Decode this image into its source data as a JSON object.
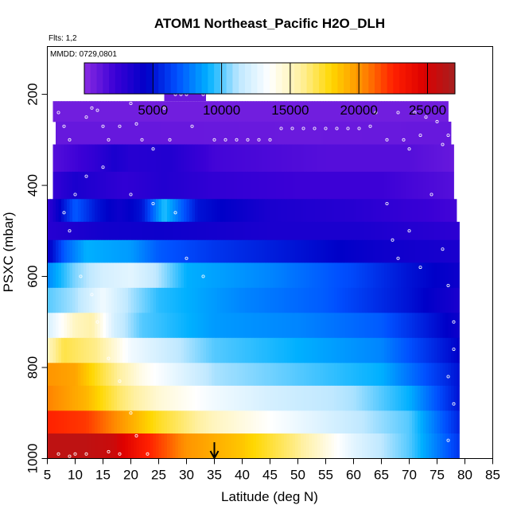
{
  "chart_data": {
    "type": "heatmap",
    "title": "ATOM1 Northeast_Pacific H2O_DLH",
    "flights_note": "Flts: 1,2",
    "date_note": "MMDD: 0729,0801",
    "xlabel": "Latitude (deg N)",
    "ylabel": "PSXC (mbar)",
    "xlim": [
      5,
      85
    ],
    "ylim": [
      1000,
      95
    ],
    "y_reversed": true,
    "x_ticks": [
      5,
      10,
      15,
      20,
      25,
      30,
      35,
      40,
      45,
      50,
      55,
      60,
      65,
      70,
      75,
      80,
      85
    ],
    "y_ticks": [
      200,
      400,
      600,
      800,
      1000
    ],
    "colorbar": {
      "range": [
        0,
        27000
      ],
      "tick_values": [
        5000,
        10000,
        15000,
        20000,
        25000
      ],
      "colors": [
        "#8a2be2",
        "#3a00d6",
        "#0000c8",
        "#0050ff",
        "#00b0ff",
        "#bfe8ff",
        "#ffffff",
        "#fff0a0",
        "#ffd700",
        "#ff8c00",
        "#ff2000",
        "#dd0000",
        "#a52020"
      ]
    },
    "grid": false,
    "marker_note": {
      "latitude": 35,
      "pressure": 1000,
      "symbol": "down-arrow"
    },
    "pressure_bands": [
      {
        "top": 215,
        "bottom": 260,
        "lat_range": [
          6,
          77
        ],
        "knots": [
          [
            6,
            700
          ],
          [
            30,
            700
          ],
          [
            50,
            700
          ],
          [
            77,
            700
          ]
        ]
      },
      {
        "top": 260,
        "bottom": 310,
        "lat_range": [
          6.5,
          77.5
        ],
        "knots": [
          [
            6.5,
            1000
          ],
          [
            25,
            1000
          ],
          [
            50,
            900
          ],
          [
            77.5,
            1000
          ]
        ]
      },
      {
        "top": 310,
        "bottom": 370,
        "lat_range": [
          6,
          78
        ],
        "knots": [
          [
            6,
            1500
          ],
          [
            13,
            2500
          ],
          [
            17,
            3500
          ],
          [
            20,
            3000
          ],
          [
            27,
            3200
          ],
          [
            35,
            2000
          ],
          [
            55,
            1500
          ],
          [
            70,
            1500
          ],
          [
            78,
            1000
          ]
        ]
      },
      {
        "top": 370,
        "bottom": 430,
        "lat_range": [
          6,
          78
        ],
        "knots": [
          [
            6,
            2500
          ],
          [
            10,
            3500
          ],
          [
            15,
            3000
          ],
          [
            19,
            2600
          ],
          [
            26,
            3200
          ],
          [
            35,
            2600
          ],
          [
            50,
            2200
          ],
          [
            65,
            2200
          ],
          [
            78,
            1500
          ]
        ]
      },
      {
        "top": 430,
        "bottom": 480,
        "lat_range": [
          5,
          78.5
        ],
        "knots": [
          [
            5,
            2500
          ],
          [
            10,
            7000
          ],
          [
            14,
            5000
          ],
          [
            18,
            4000
          ],
          [
            22,
            5000
          ],
          [
            26,
            9500
          ],
          [
            28,
            8000
          ],
          [
            32,
            5000
          ],
          [
            45,
            3500
          ],
          [
            60,
            3000
          ],
          [
            78.5,
            2000
          ]
        ]
      },
      {
        "top": 480,
        "bottom": 520,
        "lat_range": [
          5,
          79
        ],
        "knots": [
          [
            5,
            3000
          ],
          [
            15,
            3800
          ],
          [
            25,
            4000
          ],
          [
            45,
            3500
          ],
          [
            60,
            3500
          ],
          [
            79,
            2800
          ]
        ]
      },
      {
        "top": 520,
        "bottom": 570,
        "lat_range": [
          5,
          79
        ],
        "knots": [
          [
            5,
            4000
          ],
          [
            8,
            7000
          ],
          [
            12,
            9000
          ],
          [
            20,
            8500
          ],
          [
            25,
            7000
          ],
          [
            35,
            6000
          ],
          [
            50,
            5000
          ],
          [
            65,
            4000
          ],
          [
            79,
            3500
          ]
        ]
      },
      {
        "top": 570,
        "bottom": 625,
        "lat_range": [
          5,
          79
        ],
        "knots": [
          [
            5,
            8000
          ],
          [
            10,
            10500
          ],
          [
            15,
            12000
          ],
          [
            20,
            12500
          ],
          [
            24,
            11500
          ],
          [
            30,
            9000
          ],
          [
            45,
            8000
          ],
          [
            60,
            6500
          ],
          [
            70,
            5000
          ],
          [
            79,
            4000
          ]
        ]
      },
      {
        "top": 625,
        "bottom": 680,
        "lat_range": [
          5,
          79
        ],
        "knots": [
          [
            5,
            10000
          ],
          [
            10,
            11000
          ],
          [
            15,
            13000
          ],
          [
            20,
            11000
          ],
          [
            25,
            9500
          ],
          [
            40,
            8000
          ],
          [
            55,
            7000
          ],
          [
            70,
            5000
          ],
          [
            79,
            3500
          ]
        ]
      },
      {
        "top": 680,
        "bottom": 735,
        "lat_range": [
          5,
          79
        ],
        "knots": [
          [
            5,
            12000
          ],
          [
            10,
            15000
          ],
          [
            13,
            15500
          ],
          [
            17,
            12000
          ],
          [
            22,
            10000
          ],
          [
            35,
            8500
          ],
          [
            50,
            8000
          ],
          [
            65,
            7000
          ],
          [
            79,
            4000
          ]
        ]
      },
      {
        "top": 735,
        "bottom": 790,
        "lat_range": [
          5,
          79
        ],
        "knots": [
          [
            5,
            15000
          ],
          [
            8,
            17000
          ],
          [
            14,
            16000
          ],
          [
            20,
            13000
          ],
          [
            35,
            10000
          ],
          [
            50,
            9000
          ],
          [
            65,
            8000
          ],
          [
            79,
            4500
          ]
        ]
      },
      {
        "top": 790,
        "bottom": 840,
        "lat_range": [
          5,
          79
        ],
        "knots": [
          [
            5,
            20000
          ],
          [
            10,
            19500
          ],
          [
            15,
            17000
          ],
          [
            22,
            14000
          ],
          [
            35,
            11000
          ],
          [
            50,
            10000
          ],
          [
            65,
            9000
          ],
          [
            79,
            5000
          ]
        ]
      },
      {
        "top": 840,
        "bottom": 895,
        "lat_range": [
          5,
          79
        ],
        "knots": [
          [
            5,
            20500
          ],
          [
            12,
            19000
          ],
          [
            18,
            16500
          ],
          [
            25,
            14500
          ],
          [
            35,
            13000
          ],
          [
            45,
            12000
          ],
          [
            60,
            11000
          ],
          [
            70,
            9000
          ],
          [
            79,
            5000
          ]
        ]
      },
      {
        "top": 895,
        "bottom": 945,
        "lat_range": [
          5,
          79
        ],
        "knots": [
          [
            5,
            22500
          ],
          [
            12,
            22000
          ],
          [
            18,
            20000
          ],
          [
            25,
            17500
          ],
          [
            35,
            15000
          ],
          [
            45,
            13500
          ],
          [
            60,
            11500
          ],
          [
            70,
            10000
          ],
          [
            79,
            5500
          ]
        ]
      },
      {
        "top": 945,
        "bottom": 1000,
        "lat_range": [
          5,
          79
        ],
        "knots": [
          [
            5,
            26000
          ],
          [
            12,
            26000
          ],
          [
            17,
            25500
          ],
          [
            22,
            23000
          ],
          [
            30,
            20000
          ],
          [
            40,
            18500
          ],
          [
            50,
            16000
          ],
          [
            60,
            12500
          ],
          [
            70,
            10000
          ],
          [
            79,
            6000
          ]
        ]
      }
    ]
  }
}
